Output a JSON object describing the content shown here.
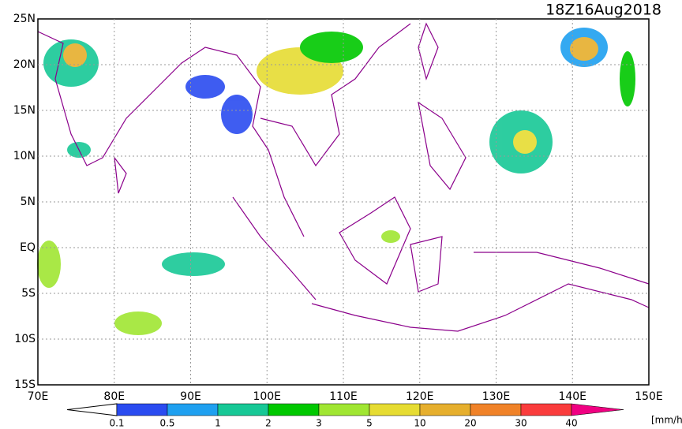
{
  "title": "18Z16Aug2018",
  "lat_labels": [
    "25N",
    "20N",
    "15N",
    "10N",
    "5N",
    "EQ",
    "5S",
    "10S",
    "15S"
  ],
  "lon_labels": [
    "70E",
    "80E",
    "90E",
    "100E",
    "110E",
    "120E",
    "130E",
    "140E",
    "150E"
  ],
  "colorbar": {
    "labels": [
      "0.1",
      "0.5",
      "1",
      "2",
      "3",
      "5",
      "10",
      "20",
      "30",
      "40"
    ],
    "colors": [
      "#ffffff",
      "#2a4bf0",
      "#1fa0f0",
      "#17c896",
      "#00c800",
      "#a0e632",
      "#e6dc32",
      "#e6af2d",
      "#f08228",
      "#fa3c3c",
      "#f00082"
    ],
    "unit": "[mm/hr]"
  }
}
